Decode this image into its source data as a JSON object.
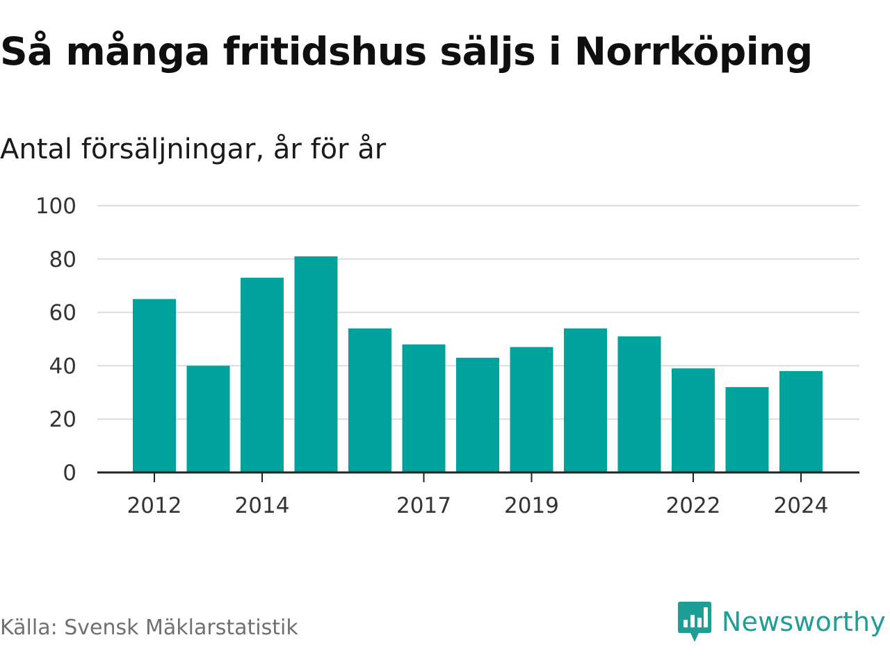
{
  "title": "Så många fritidshus säljs i Norrköping",
  "subtitle": "Antal försäljningar, år för år",
  "source": "Källa: Svensk Mäklarstatistik",
  "brand": "Newsworthy",
  "icon": "newsworthy-logo-icon",
  "colors": {
    "bar": "#00a39b",
    "grid": "#dcdcdc",
    "axis": "#222222",
    "brand": "#1f9e96"
  },
  "chart_data": {
    "type": "bar",
    "categories": [
      "2012",
      "2013",
      "2014",
      "2015",
      "2016",
      "2017",
      "2018",
      "2019",
      "2020",
      "2021",
      "2022",
      "2023",
      "2024"
    ],
    "values": [
      65,
      40,
      73,
      81,
      54,
      48,
      43,
      47,
      54,
      51,
      39,
      32,
      38
    ],
    "xticks": [
      "2012",
      "2014",
      "2017",
      "2019",
      "2022",
      "2024"
    ],
    "yticks": [
      0,
      20,
      40,
      60,
      80,
      100
    ],
    "ylim": [
      0,
      100
    ],
    "xlabel": "",
    "ylabel": "",
    "grid": true
  }
}
